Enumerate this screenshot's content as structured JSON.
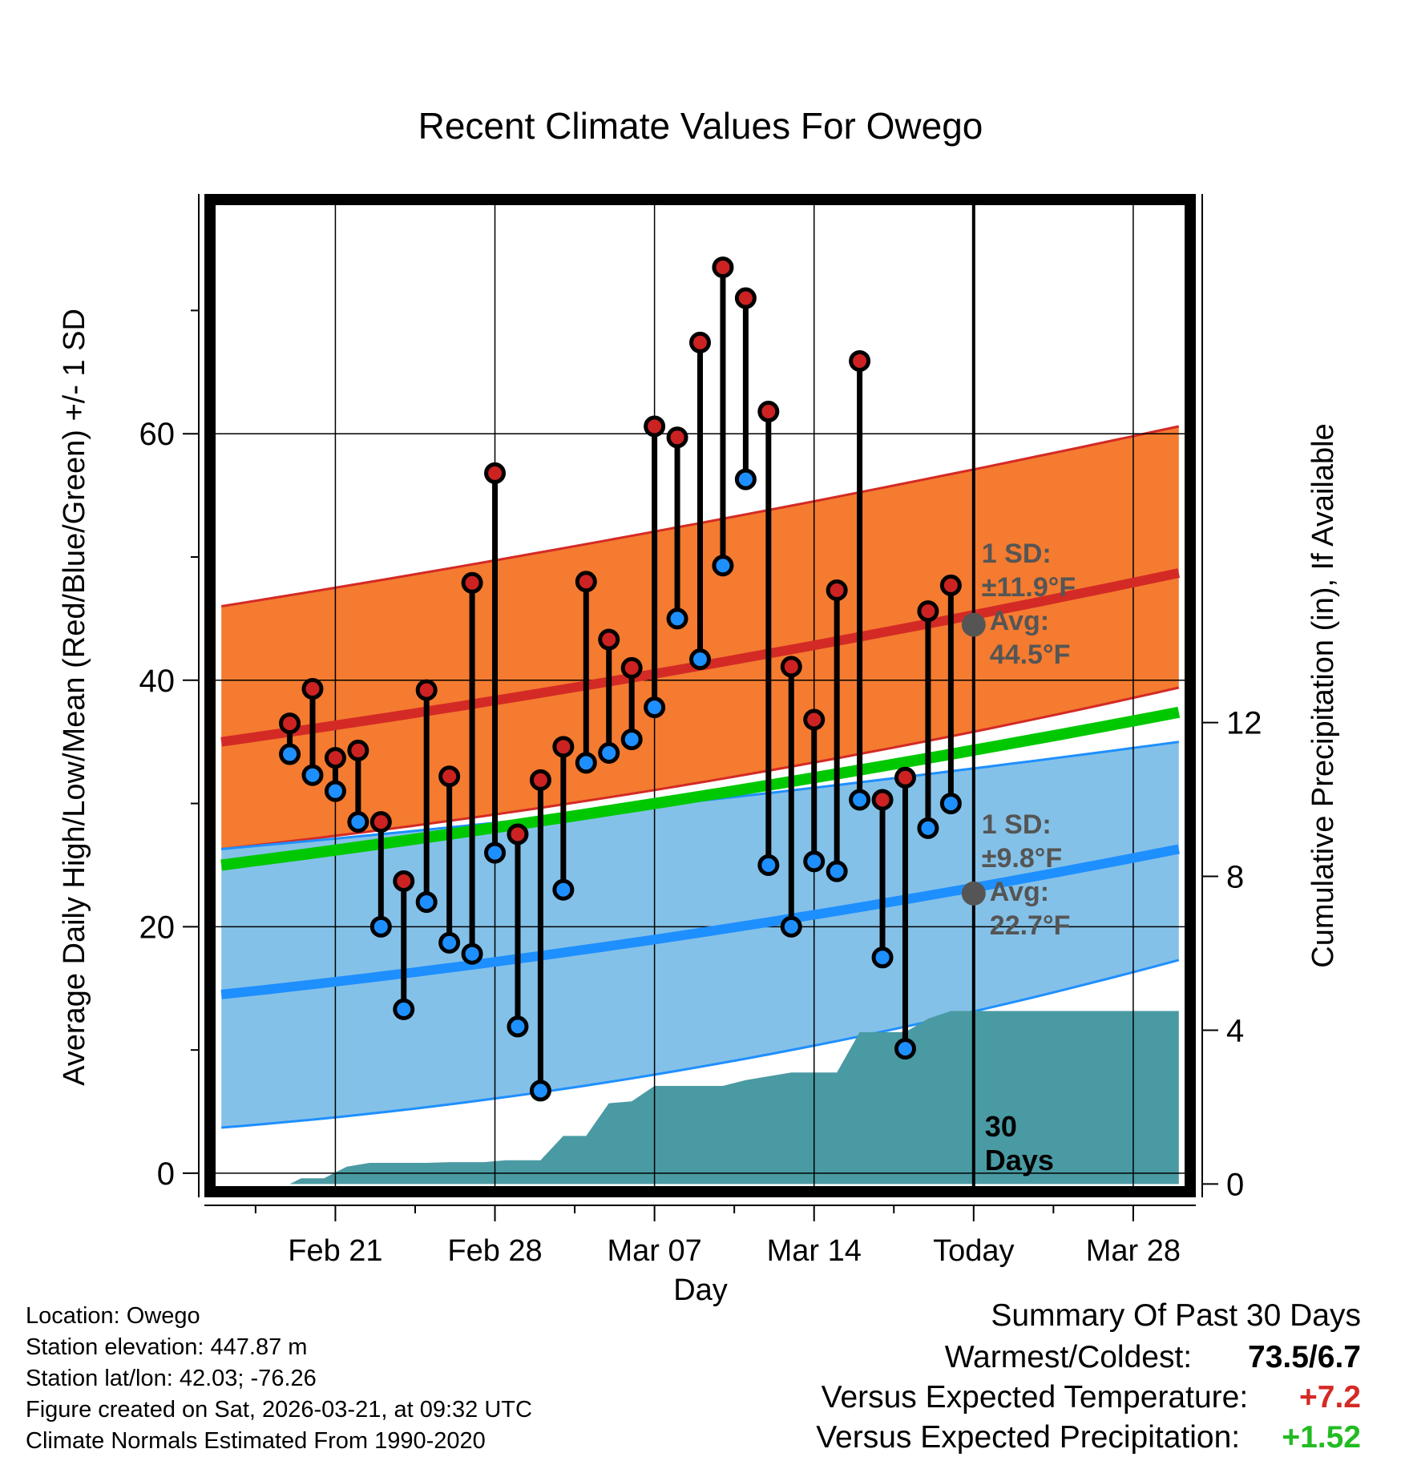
{
  "chart_data": {
    "type": "line",
    "title": "Recent Climate Values For Owego",
    "xlabel": "Day",
    "ylabel_left": "Average Daily High/Low/Mean (Red/Blue/Green) +/- 1 SD",
    "ylabel_right": "Cumulative Precipitation (in), If Available",
    "ylim_left": [
      -1.5,
      79
    ],
    "ylim_right": [
      -0.2,
      25.6
    ],
    "xlim_days": [
      -33.5,
      9.5
    ],
    "left_ticks": [
      {
        "v": 0,
        "label": "0"
      },
      {
        "v": 20,
        "label": "20"
      },
      {
        "v": 40,
        "label": "40"
      },
      {
        "v": 60,
        "label": "60"
      }
    ],
    "left_minor_ticks": [
      10,
      30,
      50,
      70
    ],
    "right_ticks": [
      {
        "v": 0,
        "label": "0"
      },
      {
        "v": 4,
        "label": "4"
      },
      {
        "v": 8,
        "label": "8"
      },
      {
        "v": 12,
        "label": "12"
      }
    ],
    "x_ticks": [
      {
        "d": -28,
        "label": "Feb 21"
      },
      {
        "d": -21,
        "label": "Feb 28"
      },
      {
        "d": -14,
        "label": "Mar 07"
      },
      {
        "d": -7,
        "label": "Mar 14"
      },
      {
        "d": 0,
        "label": "Today"
      },
      {
        "d": 7,
        "label": "Mar 28"
      }
    ],
    "today_label_line1": "30",
    "today_label_line2": "Days",
    "normals": {
      "x": [
        -33,
        9
      ],
      "high_mean": [
        35.0,
        48.7
      ],
      "high_sd_upper": [
        46.0,
        60.6
      ],
      "high_sd_lower": [
        26.3,
        39.4
      ],
      "low_mean": [
        14.5,
        26.3
      ],
      "low_sd_upper": [
        26.3,
        35.0
      ],
      "low_sd_lower": [
        3.7,
        17.3
      ],
      "mean_line": [
        25.0,
        37.4
      ]
    },
    "high_annotation": {
      "line1": "1 SD:",
      "line2": "±11.9°F",
      "line3": "Avg:",
      "line4": "44.5°F",
      "avg_value": 44.5
    },
    "low_annotation": {
      "line1": "1 SD:",
      "line2": "±9.8°F",
      "line3": "Avg:",
      "line4": "22.7°F",
      "avg_value": 22.7
    },
    "daily": {
      "day": [
        -30,
        -29,
        -28,
        -27,
        -26,
        -25,
        -24,
        -23,
        -22,
        -21,
        -20,
        -19,
        -18,
        -17,
        -16,
        -15,
        -14,
        -13,
        -12,
        -11,
        -10,
        -9,
        -8,
        -7,
        -6,
        -5,
        -4,
        -3,
        -2,
        -1
      ],
      "high": [
        36.5,
        39.3,
        33.7,
        34.3,
        28.5,
        23.7,
        39.2,
        32.2,
        47.9,
        56.8,
        27.5,
        31.9,
        34.6,
        48.0,
        43.3,
        41.0,
        60.6,
        59.7,
        67.4,
        73.5,
        71.0,
        61.8,
        41.1,
        36.8,
        47.3,
        65.9,
        30.3,
        32.1,
        45.6,
        47.7
      ],
      "low": [
        34.0,
        32.3,
        31.0,
        28.5,
        20.0,
        13.3,
        22.0,
        18.7,
        17.8,
        26.0,
        11.9,
        6.7,
        23.0,
        33.3,
        34.1,
        35.2,
        37.8,
        45.0,
        41.7,
        49.3,
        56.3,
        25.0,
        20.0,
        25.3,
        24.5,
        30.3,
        17.5,
        10.1,
        28.0,
        30.0
      ]
    },
    "precip": {
      "points": [
        [
          -31,
          0.0
        ],
        [
          -30,
          0.0
        ],
        [
          -29.5,
          0.15
        ],
        [
          -28.5,
          0.15
        ],
        [
          -27.5,
          0.45
        ],
        [
          -26.5,
          0.55
        ],
        [
          -24,
          0.55
        ],
        [
          -23,
          0.57
        ],
        [
          -21.5,
          0.57
        ],
        [
          -20.5,
          0.62
        ],
        [
          -19,
          0.62
        ],
        [
          -18,
          1.25
        ],
        [
          -17,
          1.25
        ],
        [
          -16,
          2.1
        ],
        [
          -15,
          2.15
        ],
        [
          -14,
          2.55
        ],
        [
          -11,
          2.55
        ],
        [
          -10,
          2.7
        ],
        [
          -9,
          2.8
        ],
        [
          -8,
          2.9
        ],
        [
          -6,
          2.9
        ],
        [
          -5,
          3.95
        ],
        [
          -3,
          3.95
        ],
        [
          -2,
          4.3
        ],
        [
          -1,
          4.5
        ],
        [
          9,
          4.5
        ]
      ]
    }
  },
  "info": {
    "location": "Location: Owego",
    "elevation": "Station elevation: 447.87 m",
    "latlon": "Station lat/lon: 42.03; -76.26",
    "created": "Figure created on Sat, 2026-03-21, at 09:32 UTC",
    "normals": "Climate Normals Estimated From 1990-2020"
  },
  "summary": {
    "heading": "Summary Of Past 30 Days",
    "warm_cold_label": "Warmest/Coldest:",
    "warm_cold_value": "73.5/6.7",
    "temp_label": "Versus Expected Temperature:",
    "temp_value": "+7.2",
    "precip_label": "Versus Expected Precipitation:",
    "precip_value": "+1.52"
  },
  "colors": {
    "high_band": "#f47b30",
    "high_line": "#d42a25",
    "low_band": "#84c1e8",
    "low_line": "#1e8fff",
    "mean_line": "#00c800",
    "precip": "#4a9aa3",
    "high_dot": "#cc2222",
    "low_dot": "#1e8fff",
    "annotation_text": "#555555",
    "temp_value": "#d42a25",
    "precip_value": "#22bb22"
  }
}
